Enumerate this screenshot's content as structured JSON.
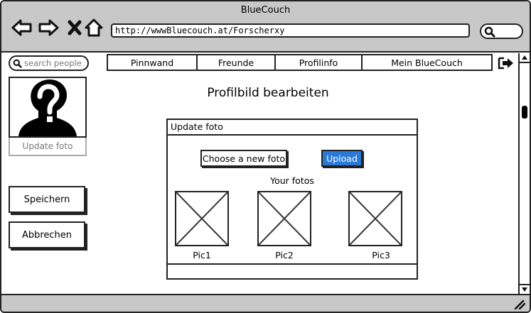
{
  "window": {
    "title": "BlueCouch"
  },
  "browser": {
    "url": "http://wwwBluecouch.at/Forscherxy",
    "back_icon": "back-arrow-icon",
    "forward_icon": "forward-arrow-icon",
    "stop_icon": "close-icon",
    "home_icon": "home-icon",
    "search_icon": "search-icon"
  },
  "sidebar": {
    "search_placeholder": "search people",
    "avatar_caption": "Update foto",
    "save_label": "Speichern",
    "cancel_label": "Abbrechen"
  },
  "nav": {
    "tabs": [
      {
        "label": "Pinnwand"
      },
      {
        "label": "Freunde"
      },
      {
        "label": "Profilinfo"
      },
      {
        "label": "Mein BlueCouch"
      }
    ],
    "logout_icon": "logout-icon"
  },
  "main": {
    "title": "Profilbild bearbeiten",
    "dialog": {
      "header": "Update foto",
      "choose_label": "Choose a new foto",
      "upload_label": "Upload",
      "fotos_label": "Your fotos",
      "pics": [
        {
          "label": "Pic1"
        },
        {
          "label": "Pic2"
        },
        {
          "label": "Pic3"
        }
      ]
    }
  },
  "colors": {
    "chrome": "#c8c8c8",
    "accent": "#2a78d8",
    "ink": "#222222"
  }
}
